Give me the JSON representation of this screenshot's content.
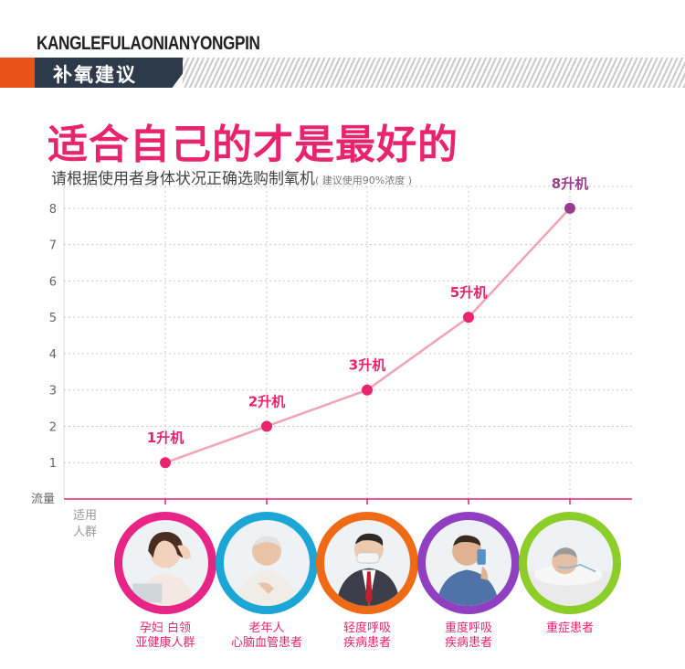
{
  "brand": "KANGLEFULAONIANYONGPIN",
  "section_title": "补氧建议",
  "headline": "适合自己的才是最好的",
  "subline": "请根据使用者身体状况正确选购制氧机",
  "subline_note": "( 建议使用90%浓度 )",
  "colors": {
    "accent": "#e8246f",
    "orange": "#e8531c",
    "navy": "#2d3a4a",
    "line": "#f2a3b6"
  },
  "chart_data": {
    "type": "line",
    "ylabel": "流量",
    "xlabel": "适用人群",
    "yticks": [
      1,
      2,
      3,
      4,
      5,
      6,
      7,
      8
    ],
    "ylim": [
      0,
      8.6
    ],
    "grid": true,
    "x": [
      "孕妇 白领 亚健康人群",
      "老年人 心脑血管患者",
      "轻度呼吸 疾病患者",
      "重度呼吸 疾病患者",
      "重症患者"
    ],
    "values": [
      1,
      2,
      3,
      5,
      8
    ],
    "point_labels": [
      "1升机",
      "2升机",
      "3升机",
      "5升机",
      "8升机"
    ],
    "point_colors": [
      "#e8246f",
      "#e8246f",
      "#e8246f",
      "#e8246f",
      "#9b3c8e"
    ]
  },
  "groups": [
    {
      "line1": "孕妇  白领",
      "line2": "亚健康人群",
      "ring": "#e62586",
      "icon": "woman-portrait-icon"
    },
    {
      "line1": "老年人",
      "line2": "心脑血管患者",
      "ring": "#1ba6d6",
      "icon": "elderly-man-portrait-icon"
    },
    {
      "line1": "轻度呼吸",
      "line2": "疾病患者",
      "ring": "#ef6a16",
      "icon": "masked-man-portrait-icon"
    },
    {
      "line1": "重度呼吸",
      "line2": "疾病患者",
      "ring": "#8f3fbf",
      "icon": "inhaler-man-portrait-icon"
    },
    {
      "line1": "重症患者",
      "line2": "",
      "ring": "#8ccd2a",
      "icon": "patient-oxygen-portrait-icon"
    }
  ]
}
